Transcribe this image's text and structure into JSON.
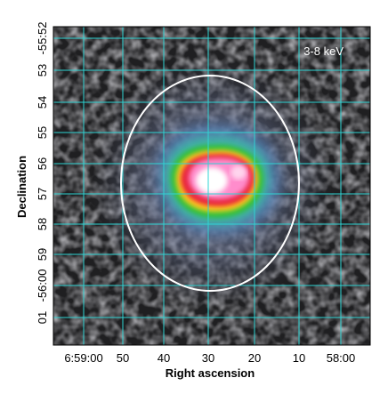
{
  "image": {
    "band_label": "3-8 keV",
    "xlabel": "Right ascension",
    "ylabel": "Declination",
    "x_ticks": [
      "6:59:00",
      "50",
      "40",
      "30",
      "20",
      "10",
      "58:00"
    ],
    "y_ticks": [
      "-55:52",
      "53",
      "54",
      "55",
      "56",
      "57",
      "58",
      "59",
      "-56:00",
      "01"
    ],
    "colors": {
      "grid": "#2fd4d4",
      "region_ellipse": "#ffffff",
      "background": "#2a2a2a",
      "halo": "#5a6a8a",
      "emission_core": [
        "#ffffff",
        "#ff88cc",
        "#e8203c",
        "#ffd21f",
        "#2fbf3a"
      ]
    }
  }
}
